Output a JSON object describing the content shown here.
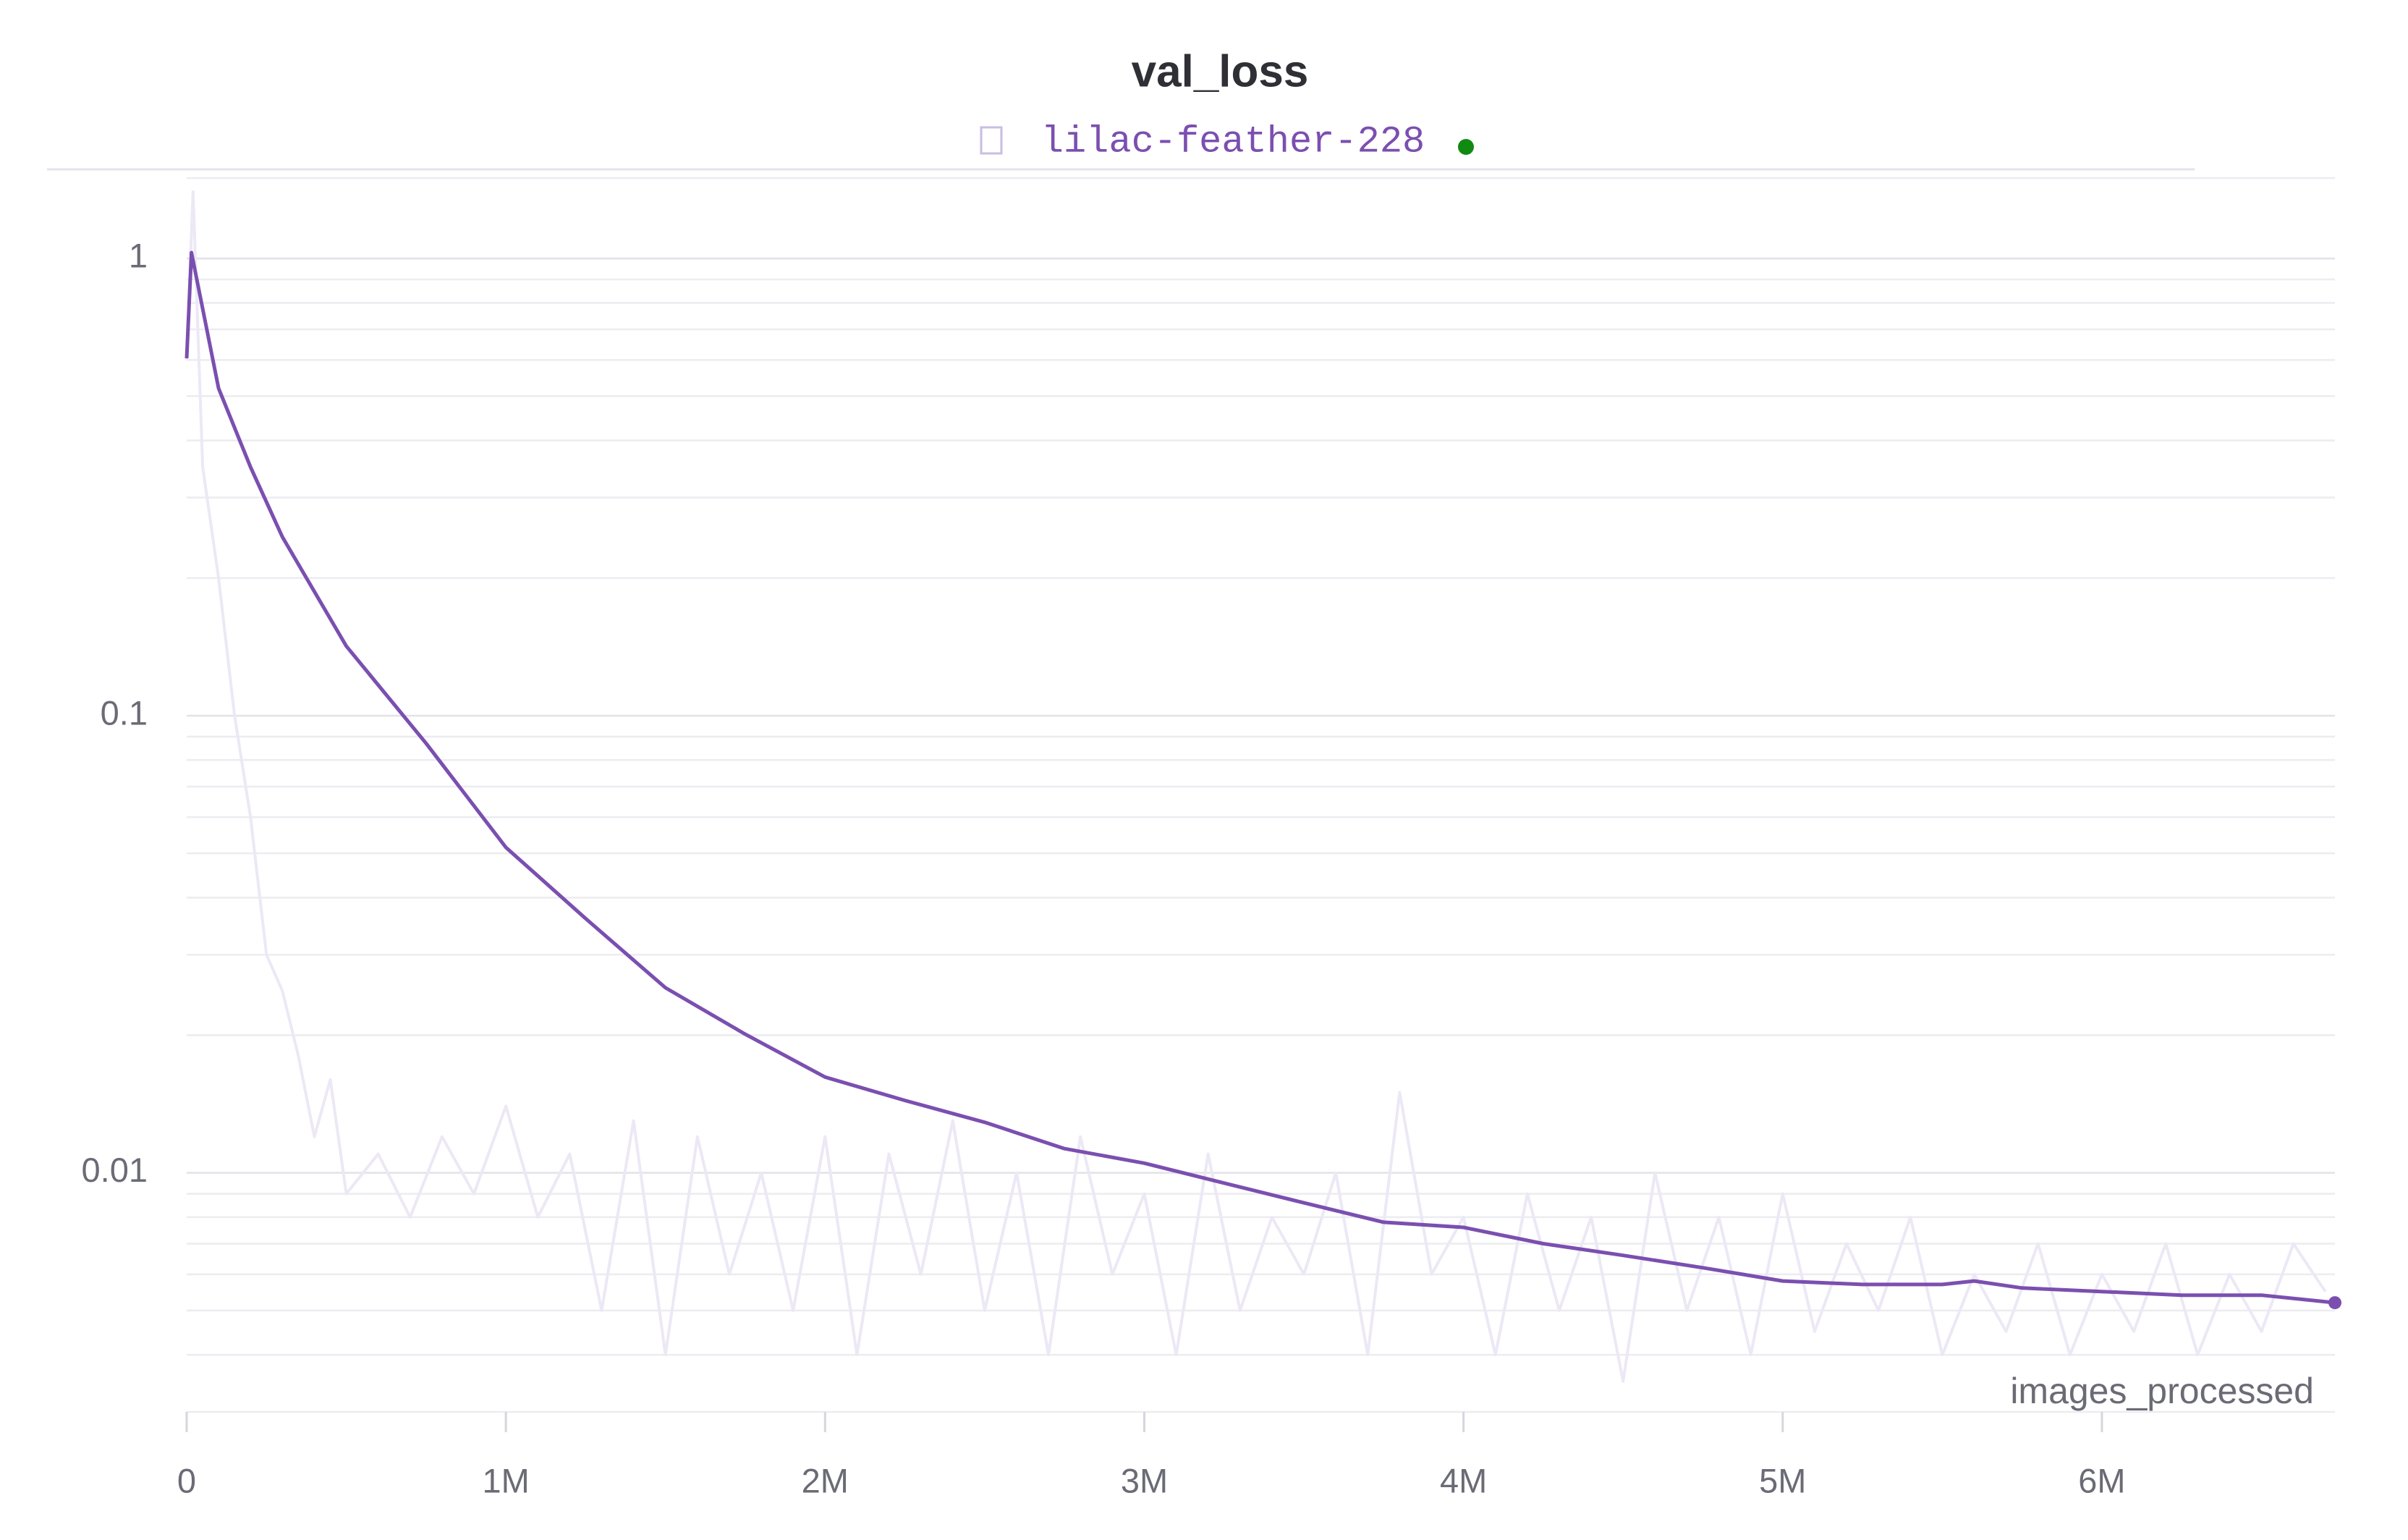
{
  "chart_data": {
    "type": "line",
    "title": "val_loss",
    "xlabel": "images_processed",
    "ylog": true,
    "grid": true,
    "xlim": [
      0,
      6730000
    ],
    "ylim": [
      0.003,
      1.55
    ],
    "xticks": [
      0,
      {
        "value": 1000000,
        "label": "1M"
      },
      {
        "value": 2000000,
        "label": "2M"
      },
      {
        "value": 3000000,
        "label": "3M"
      },
      {
        "value": 4000000,
        "label": "4M"
      },
      {
        "value": 5000000,
        "label": "5M"
      },
      {
        "value": 6000000,
        "label": "6M"
      }
    ],
    "yticks": [
      0.01,
      0.1,
      1
    ],
    "yminorticks": [
      0.003,
      0.004,
      0.005,
      0.006,
      0.007,
      0.008,
      0.009,
      0.02,
      0.03,
      0.04,
      0.05,
      0.06,
      0.07,
      0.08,
      0.09,
      0.2,
      0.3,
      0.4,
      0.5,
      0.6,
      0.7,
      0.8,
      0.9,
      1.5
    ],
    "series": [
      {
        "name": "lilac-feather-228",
        "color": "#7b4fb0",
        "x": [
          0,
          15000,
          100000,
          200000,
          300000,
          500000,
          750000,
          1000000,
          1250000,
          1500000,
          1750000,
          2000000,
          2250000,
          2500000,
          2750000,
          3000000,
          3250000,
          3500000,
          3750000,
          4000000,
          4250000,
          4500000,
          4750000,
          5000000,
          5250000,
          5500000,
          5600000,
          5750000,
          6000000,
          6250000,
          6500000,
          6730000
        ],
        "values": [
          0.605,
          1.03,
          0.52,
          0.35,
          0.246,
          0.142,
          0.087,
          0.0515,
          0.036,
          0.0254,
          0.0201,
          0.0162,
          0.0144,
          0.0129,
          0.0113,
          0.0105,
          0.0095,
          0.0086,
          0.0078,
          0.0076,
          0.007,
          0.0066,
          0.0062,
          0.0058,
          0.0057,
          0.0057,
          0.0058,
          0.0056,
          0.0055,
          0.0054,
          0.0054,
          0.0052
        ]
      },
      {
        "color": "#ece8f5",
        "x": [
          0,
          20000,
          50000,
          100000,
          150000,
          200000,
          250000,
          300000,
          350000,
          400000,
          450000,
          500000,
          600000,
          700000,
          800000,
          900000,
          1000000,
          1100000,
          1200000,
          1300000,
          1400000,
          1500000,
          1600000,
          1700000,
          1800000,
          1900000,
          2000000,
          2100000,
          2200000,
          2300000,
          2400000,
          2500000,
          2600000,
          2700000,
          2800000,
          2900000,
          3000000,
          3100000,
          3200000,
          3300000,
          3400000,
          3500000,
          3600000,
          3700000,
          3800000,
          3900000,
          4000000,
          4100000,
          4200000,
          4300000,
          4400000,
          4500000,
          4600000,
          4700000,
          4800000,
          4900000,
          5000000,
          5100000,
          5200000,
          5300000,
          5400000,
          5500000,
          5600000,
          5700000,
          5800000,
          5900000,
          6000000,
          6100000,
          6200000,
          6300000,
          6400000,
          6500000,
          6600000,
          6700000
        ],
        "values": [
          0.6,
          1.4,
          0.35,
          0.2,
          0.1,
          0.06,
          0.03,
          0.025,
          0.018,
          0.012,
          0.016,
          0.009,
          0.011,
          0.008,
          0.012,
          0.009,
          0.014,
          0.008,
          0.011,
          0.005,
          0.013,
          0.004,
          0.012,
          0.006,
          0.01,
          0.005,
          0.012,
          0.004,
          0.011,
          0.006,
          0.013,
          0.005,
          0.01,
          0.004,
          0.012,
          0.006,
          0.009,
          0.004,
          0.011,
          0.005,
          0.008,
          0.006,
          0.01,
          0.004,
          0.015,
          0.006,
          0.008,
          0.004,
          0.009,
          0.005,
          0.008,
          0.0035,
          0.01,
          0.005,
          0.008,
          0.004,
          0.009,
          0.0045,
          0.007,
          0.005,
          0.008,
          0.004,
          0.006,
          0.0045,
          0.007,
          0.004,
          0.006,
          0.0045,
          0.007,
          0.004,
          0.006,
          0.0045,
          0.007,
          0.0055
        ]
      }
    ]
  }
}
